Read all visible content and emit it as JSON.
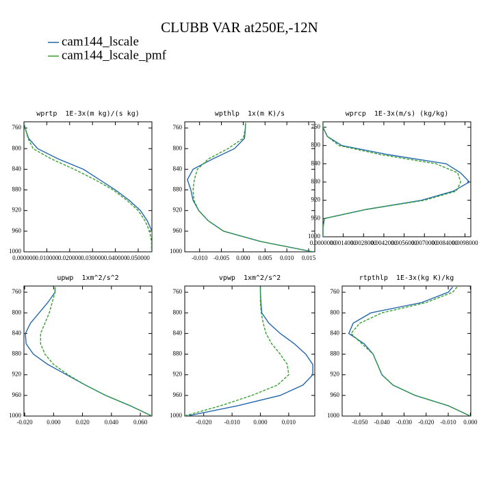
{
  "title": "CLUBB VAR at250E,-12N",
  "chart_data": [
    {
      "type": "line",
      "title": "wprtp  1E-3x(m kg)/(s kg)",
      "y": [
        750,
        760,
        780,
        800,
        820,
        840,
        860,
        880,
        900,
        920,
        940,
        960,
        980,
        1000
      ],
      "series": [
        {
          "name": "cam144_lscale",
          "color": "#2166ac",
          "style": "solid",
          "values": [
            0,
            0.0005,
            0.002,
            0.006,
            0.015,
            0.026,
            0.033,
            0.04,
            0.046,
            0.051,
            0.054,
            0.056,
            0.0565,
            0.0565
          ]
        },
        {
          "name": "cam144_lscale_pmf",
          "color": "#33a02c",
          "style": "dashed",
          "values": [
            0,
            0.0005,
            0.0018,
            0.004,
            0.012,
            0.022,
            0.031,
            0.039,
            0.045,
            0.05,
            0.053,
            0.055,
            0.0558,
            0.0558
          ]
        }
      ],
      "xlim": [
        0,
        0.056
      ],
      "ylim": [
        1000,
        748
      ],
      "xticks": [
        {
          "value": 0,
          "label": "0.000000"
        },
        {
          "value": 0.01,
          "label": "0.010000"
        },
        {
          "value": 0.02,
          "label": "0.020000"
        },
        {
          "value": 0.03,
          "label": "0.030000"
        },
        {
          "value": 0.04,
          "label": "0.040000"
        },
        {
          "value": 0.05,
          "label": "0.050000"
        }
      ],
      "yticks": [
        760,
        800,
        840,
        880,
        920,
        960,
        1000
      ]
    },
    {
      "type": "line",
      "title": "wpthlp  1x(m K)/s",
      "y": [
        750,
        760,
        780,
        800,
        820,
        840,
        860,
        880,
        900,
        920,
        940,
        960,
        980,
        1000
      ],
      "series": [
        {
          "name": "cam144_lscale",
          "color": "#2166ac",
          "style": "solid",
          "values": [
            0.0005,
            0.0005,
            0.0003,
            -0.002,
            -0.007,
            -0.0115,
            -0.0128,
            -0.012,
            -0.0115,
            -0.0102,
            -0.008,
            -0.0045,
            0.004,
            0.016
          ]
        },
        {
          "name": "cam144_lscale_pmf",
          "color": "#33a02c",
          "style": "dashed",
          "values": [
            0.0005,
            0.0005,
            0.0,
            -0.0035,
            -0.008,
            -0.0105,
            -0.0112,
            -0.0115,
            -0.0113,
            -0.0102,
            -0.008,
            -0.0045,
            0.004,
            0.016
          ]
        }
      ],
      "xlim": [
        -0.0134,
        0.0164
      ],
      "ylim": [
        1000,
        748
      ],
      "xticks": [
        {
          "value": -0.01,
          "label": "-0.010"
        },
        {
          "value": -0.005,
          "label": "-0.005"
        },
        {
          "value": 0,
          "label": "0.000"
        },
        {
          "value": 0.005,
          "label": "0.005"
        },
        {
          "value": 0.01,
          "label": "0.010"
        },
        {
          "value": 0.015,
          "label": "0.015"
        }
      ],
      "yticks": [
        760,
        800,
        840,
        880,
        920,
        960,
        1000
      ]
    },
    {
      "type": "line",
      "title": "wprcp  1E-3x(m/s) (kg/kg)",
      "y": [
        750,
        760,
        780,
        800,
        820,
        840,
        860,
        880,
        900,
        920,
        940,
        960,
        980,
        1000
      ],
      "series": [
        {
          "name": "cam144_lscale",
          "color": "#2166ac",
          "style": "solid",
          "values": [
            0,
            0,
            0.0003,
            0.0013,
            0.0045,
            0.0085,
            0.0095,
            0.0101,
            0.009,
            0.0068,
            0.003,
            0.0001,
            0,
            0
          ]
        },
        {
          "name": "cam144_lscale_pmf",
          "color": "#33a02c",
          "style": "dashed",
          "values": [
            0,
            0,
            0.0003,
            0.0011,
            0.004,
            0.0078,
            0.0093,
            0.0095,
            0.0092,
            0.007,
            0.003,
            0.0001,
            0,
            0
          ]
        }
      ],
      "xlim": [
        0,
        0.0102
      ],
      "ylim": [
        1000,
        748
      ],
      "xticks": [
        {
          "value": 0,
          "label": "0.0000000"
        },
        {
          "value": 0.0014,
          "label": "0.0014000"
        },
        {
          "value": 0.0028,
          "label": "0.0028000"
        },
        {
          "value": 0.0042,
          "label": "0.0042000"
        },
        {
          "value": 0.0056,
          "label": "0.0056000"
        },
        {
          "value": 0.007,
          "label": "0.0070000"
        },
        {
          "value": 0.0084,
          "label": "0.0084000"
        },
        {
          "value": 0.0098,
          "label": "0.0098000"
        }
      ],
      "yticks": [
        760,
        800,
        840,
        880,
        920,
        960,
        1000
      ]
    },
    {
      "type": "line",
      "title": "upwp  1xm^2/s^2",
      "y": [
        750,
        760,
        780,
        800,
        820,
        840,
        860,
        880,
        900,
        920,
        940,
        960,
        980,
        1000
      ],
      "series": [
        {
          "name": "cam144_lscale",
          "color": "#2166ac",
          "style": "solid",
          "values": [
            0.001,
            0.001,
            -0.004,
            -0.01,
            -0.016,
            -0.0195,
            -0.019,
            -0.014,
            -0.004,
            0.009,
            0.022,
            0.036,
            0.053,
            0.068
          ]
        },
        {
          "name": "cam144_lscale_pmf",
          "color": "#33a02c",
          "style": "dashed",
          "values": [
            0.001,
            0.001,
            -0.001,
            -0.003,
            -0.006,
            -0.009,
            -0.009,
            -0.006,
            0.0,
            0.01,
            0.022,
            0.036,
            0.053,
            0.068
          ]
        }
      ],
      "xlim": [
        -0.0205,
        0.068
      ],
      "ylim": [
        1000,
        748
      ],
      "xticks": [
        {
          "value": -0.02,
          "label": "-0.020"
        },
        {
          "value": 0,
          "label": "0.000"
        },
        {
          "value": 0.02,
          "label": "0.020"
        },
        {
          "value": 0.04,
          "label": "0.040"
        },
        {
          "value": 0.06,
          "label": "0.060"
        }
      ],
      "yticks": [
        760,
        800,
        840,
        880,
        920,
        960,
        1000
      ]
    },
    {
      "type": "line",
      "title": "vpwp  1xm^2/s^2",
      "y": [
        750,
        760,
        780,
        800,
        820,
        840,
        860,
        880,
        900,
        920,
        940,
        960,
        980,
        1000
      ],
      "series": [
        {
          "name": "cam144_lscale",
          "color": "#2166ac",
          "style": "solid",
          "values": [
            0,
            0,
            0.0002,
            0.0005,
            0.003,
            0.007,
            0.012,
            0.016,
            0.0185,
            0.0185,
            0.015,
            0.007,
            -0.008,
            -0.026
          ]
        },
        {
          "name": "cam144_lscale_pmf",
          "color": "#33a02c",
          "style": "dashed",
          "values": [
            0,
            0,
            0,
            0.0003,
            0.001,
            0.002,
            0.004,
            0.007,
            0.0095,
            0.01,
            0.006,
            -0.003,
            -0.014,
            -0.027
          ]
        }
      ],
      "xlim": [
        -0.0267,
        0.0192
      ],
      "ylim": [
        1000,
        748
      ],
      "xticks": [
        {
          "value": -0.02,
          "label": "-0.020"
        },
        {
          "value": -0.01,
          "label": "-0.010"
        },
        {
          "value": 0,
          "label": "0.000"
        },
        {
          "value": 0.01,
          "label": "0.010"
        }
      ],
      "yticks": [
        760,
        800,
        840,
        880,
        920,
        960,
        1000
      ]
    },
    {
      "type": "line",
      "title": "rtpthlp  1E-3x(kg K)/kg",
      "y": [
        750,
        760,
        780,
        800,
        820,
        840,
        860,
        880,
        900,
        920,
        940,
        960,
        980,
        1000
      ],
      "series": [
        {
          "name": "cam144_lscale",
          "color": "#2166ac",
          "style": "solid",
          "values": [
            -0.008,
            -0.01,
            -0.022,
            -0.045,
            -0.053,
            -0.055,
            -0.048,
            -0.044,
            -0.042,
            -0.04,
            -0.035,
            -0.025,
            -0.01,
            0.0
          ]
        },
        {
          "name": "cam144_lscale_pmf",
          "color": "#33a02c",
          "style": "dashed",
          "values": [
            -0.006,
            -0.008,
            -0.02,
            -0.04,
            -0.05,
            -0.054,
            -0.049,
            -0.044,
            -0.042,
            -0.04,
            -0.035,
            -0.025,
            -0.01,
            0.0
          ]
        }
      ],
      "xlim": [
        -0.058,
        0.0002
      ],
      "ylim": [
        1000,
        748
      ],
      "xticks": [
        {
          "value": -0.05,
          "label": "-0.050"
        },
        {
          "value": -0.04,
          "label": "-0.040"
        },
        {
          "value": -0.03,
          "label": "-0.030"
        },
        {
          "value": -0.02,
          "label": "-0.020"
        },
        {
          "value": -0.01,
          "label": "-0.010"
        },
        {
          "value": 0,
          "label": "0.000"
        }
      ],
      "yticks": [
        760,
        800,
        840,
        880,
        920,
        960,
        1000
      ]
    }
  ]
}
